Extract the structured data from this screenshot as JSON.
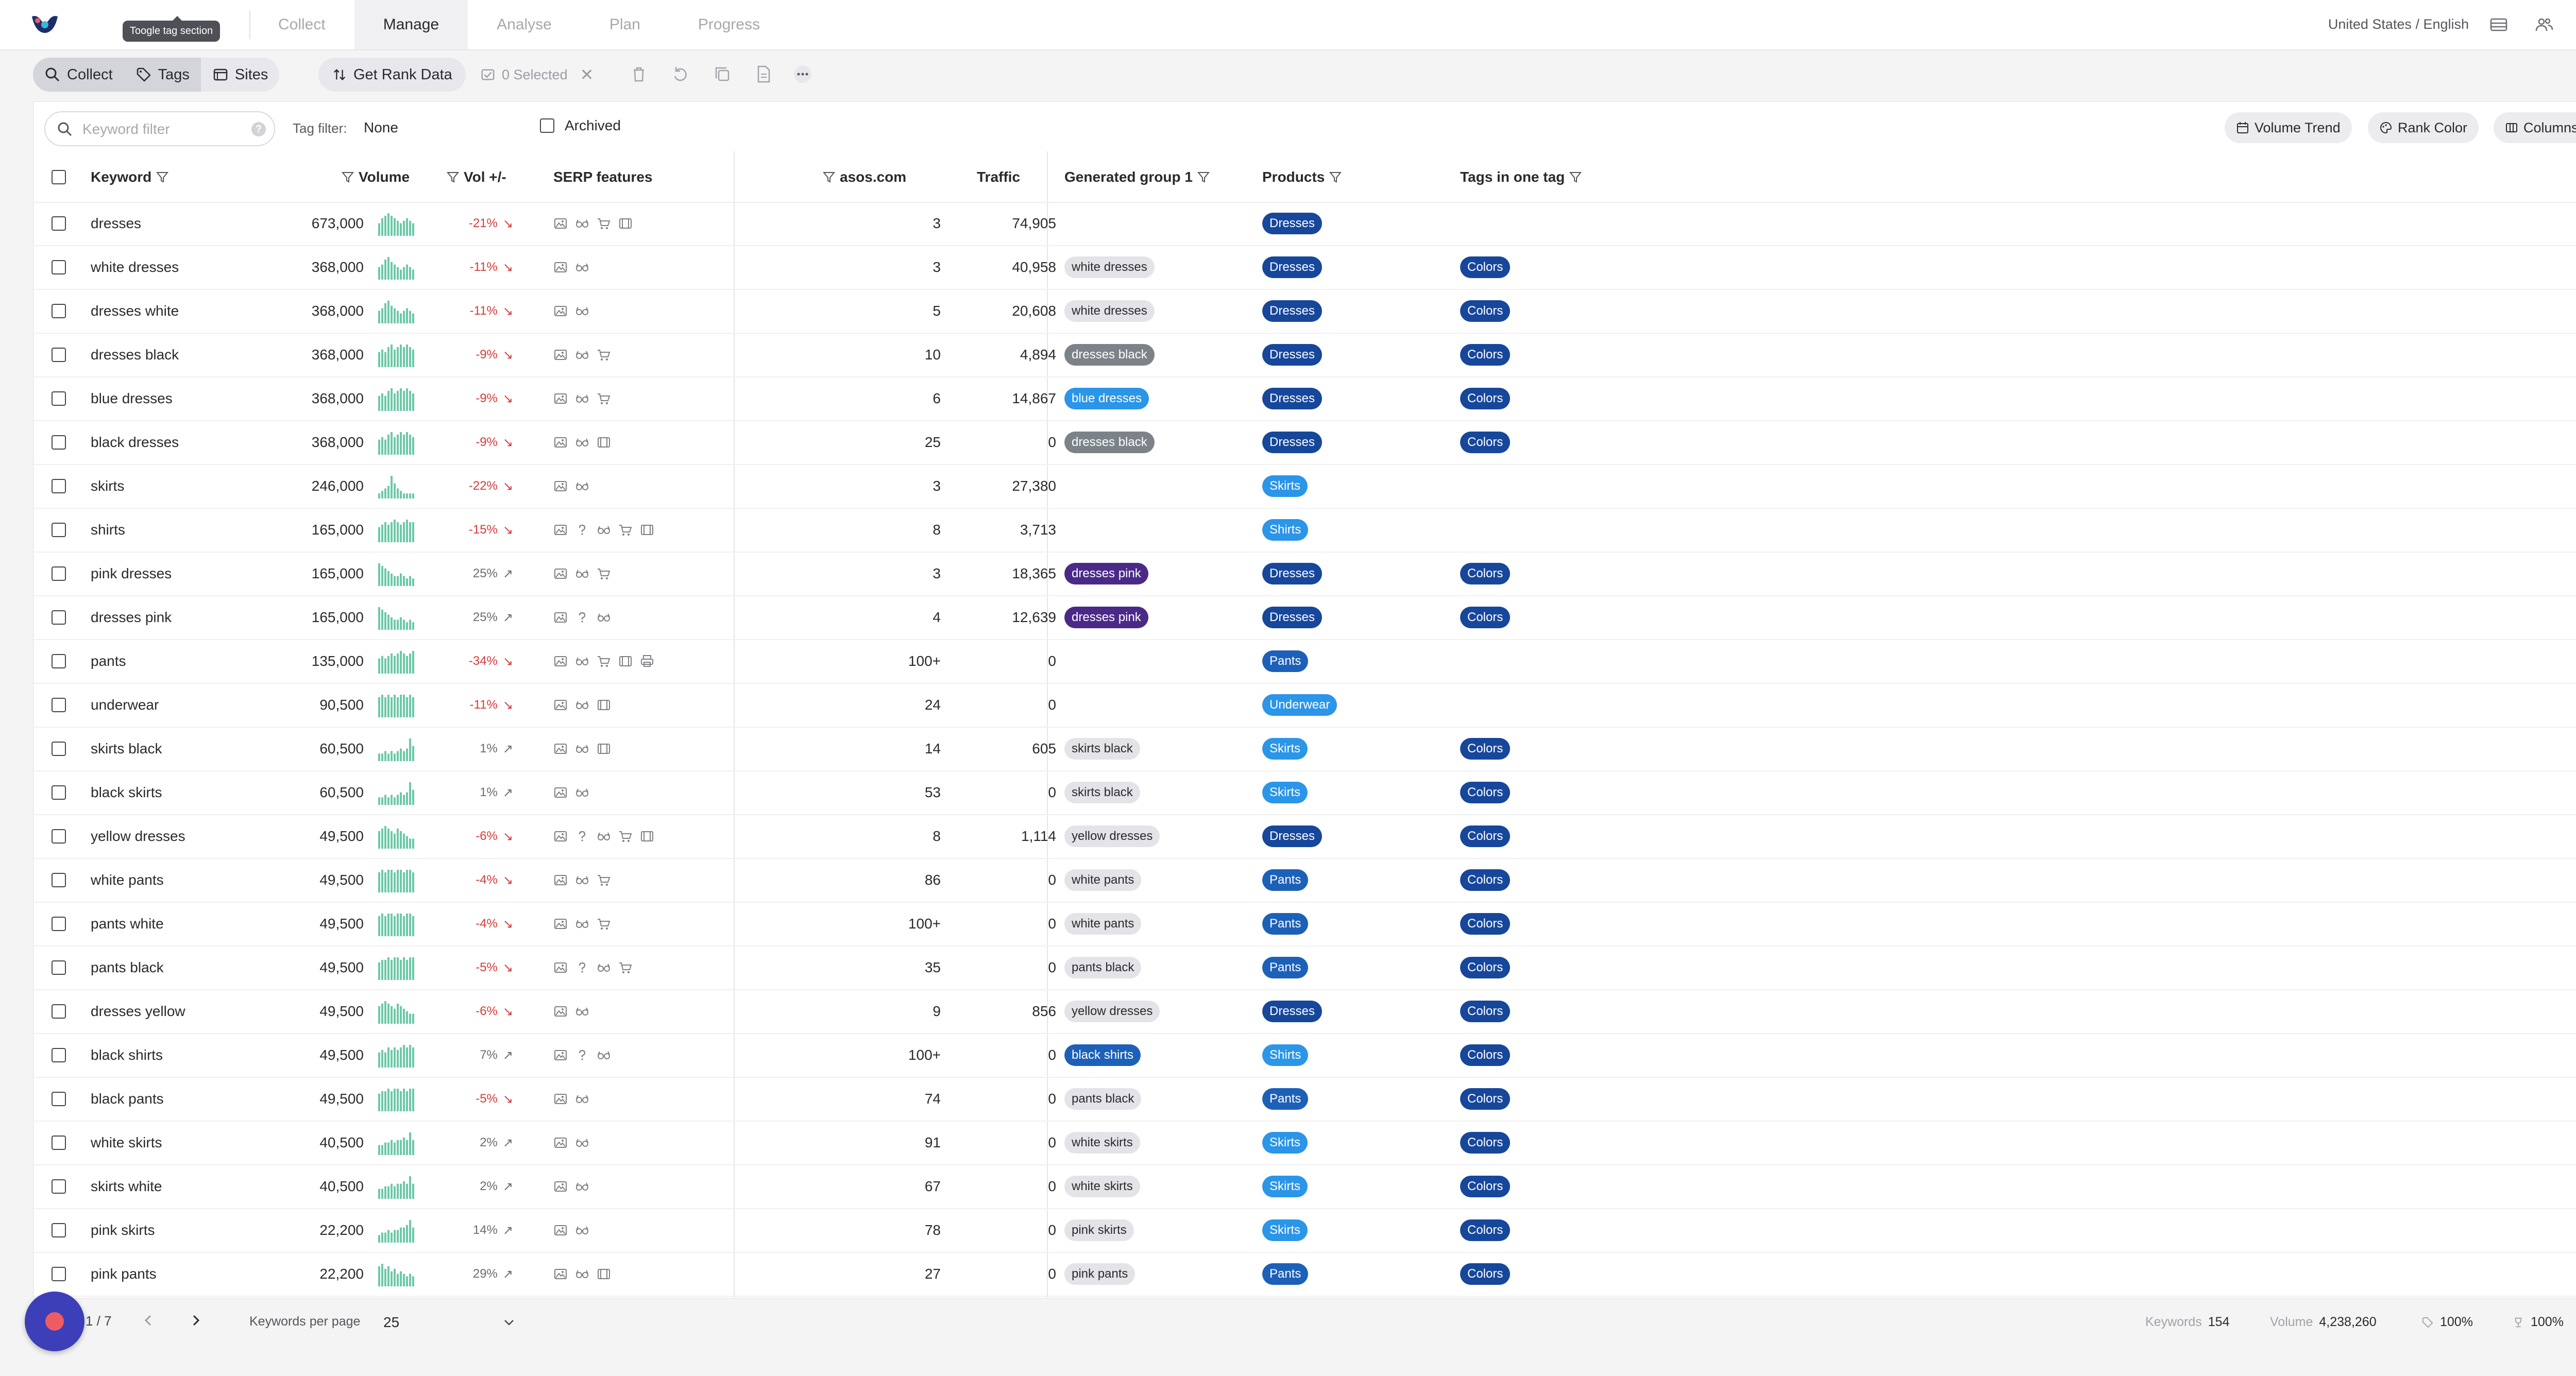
{
  "nav": {
    "tabs": [
      "Collect",
      "Manage",
      "Analyse",
      "Plan",
      "Progress"
    ],
    "active_tab": "Manage",
    "locale": "United States / English",
    "tooltip": "Toogle tag section"
  },
  "toolbar": {
    "collect_label": "Collect",
    "tags_label": "Tags",
    "sites_label": "Sites",
    "rank_label": "Get Rank Data",
    "selected_label": "0 Selected"
  },
  "filters": {
    "search_placeholder": "Keyword filter",
    "tag_filter_label": "Tag filter:",
    "tag_filter_value": "None",
    "archived_label": "Archived",
    "volume_trend_label": "Volume Trend",
    "rank_color_label": "Rank Color",
    "columns_label": "Columns"
  },
  "table": {
    "headers": {
      "keyword": "Keyword",
      "volume": "Volume",
      "vol_change": "Vol +/-",
      "serp": "SERP features",
      "site": "asos.com",
      "traffic": "Traffic",
      "group": "Generated group 1",
      "products": "Products",
      "tags": "Tags in one tag"
    },
    "rows": [
      {
        "keyword": "dresses",
        "volume": "673,000",
        "change": "-21%",
        "dir": "down",
        "spark": [
          5,
          7,
          8,
          9,
          8,
          7,
          6,
          5,
          6,
          7,
          6,
          5
        ],
        "serp": [
          "image",
          "glasses",
          "cart",
          "film"
        ],
        "rank": "3",
        "traffic": "74,905",
        "group": "",
        "product": "Dresses",
        "tag": ""
      },
      {
        "keyword": "white dresses",
        "volume": "368,000",
        "change": "-11%",
        "dir": "down",
        "spark": [
          5,
          6,
          8,
          9,
          7,
          6,
          5,
          4,
          5,
          6,
          5,
          4
        ],
        "serp": [
          "image",
          "glasses"
        ],
        "rank": "3",
        "traffic": "40,958",
        "group": "white dresses",
        "product": "Dresses",
        "tag": "Colors"
      },
      {
        "keyword": "dresses white",
        "volume": "368,000",
        "change": "-11%",
        "dir": "down",
        "spark": [
          5,
          6,
          8,
          9,
          7,
          6,
          5,
          4,
          5,
          6,
          5,
          4
        ],
        "serp": [
          "image",
          "glasses"
        ],
        "rank": "5",
        "traffic": "20,608",
        "group": "white dresses",
        "product": "Dresses",
        "tag": "Colors"
      },
      {
        "keyword": "dresses black",
        "volume": "368,000",
        "change": "-9%",
        "dir": "down",
        "spark": [
          6,
          7,
          6,
          8,
          9,
          7,
          8,
          9,
          8,
          9,
          8,
          7
        ],
        "serp": [
          "image",
          "glasses",
          "cart"
        ],
        "rank": "10",
        "traffic": "4,894",
        "group": "dresses black",
        "product": "Dresses",
        "tag": "Colors"
      },
      {
        "keyword": "blue dresses",
        "volume": "368,000",
        "change": "-9%",
        "dir": "down",
        "spark": [
          6,
          7,
          6,
          8,
          9,
          7,
          8,
          9,
          8,
          9,
          8,
          7
        ],
        "serp": [
          "image",
          "glasses",
          "cart"
        ],
        "rank": "6",
        "traffic": "14,867",
        "group": "blue dresses",
        "product": "Dresses",
        "tag": "Colors"
      },
      {
        "keyword": "black dresses",
        "volume": "368,000",
        "change": "-9%",
        "dir": "down",
        "spark": [
          6,
          7,
          6,
          8,
          9,
          7,
          8,
          9,
          8,
          9,
          8,
          7
        ],
        "serp": [
          "image",
          "glasses",
          "film"
        ],
        "rank": "25",
        "traffic": "0",
        "group": "dresses black",
        "product": "Dresses",
        "tag": "Colors"
      },
      {
        "keyword": "skirts",
        "volume": "246,000",
        "change": "-22%",
        "dir": "down",
        "spark": [
          2,
          3,
          4,
          5,
          9,
          6,
          4,
          3,
          2,
          2,
          2,
          2
        ],
        "serp": [
          "image",
          "glasses"
        ],
        "rank": "3",
        "traffic": "27,380",
        "group": "",
        "product": "Skirts",
        "tag": ""
      },
      {
        "keyword": "shirts",
        "volume": "165,000",
        "change": "-15%",
        "dir": "down",
        "spark": [
          6,
          7,
          8,
          7,
          8,
          9,
          8,
          7,
          8,
          9,
          8,
          8
        ],
        "serp": [
          "image",
          "question",
          "glasses",
          "cart",
          "film"
        ],
        "rank": "8",
        "traffic": "3,713",
        "group": "",
        "product": "Shirts",
        "tag": ""
      },
      {
        "keyword": "pink dresses",
        "volume": "165,000",
        "change": "25%",
        "dir": "up",
        "spark": [
          9,
          8,
          7,
          6,
          5,
          4,
          4,
          5,
          4,
          3,
          4,
          3
        ],
        "serp": [
          "image",
          "glasses",
          "cart"
        ],
        "rank": "3",
        "traffic": "18,365",
        "group": "dresses pink",
        "product": "Dresses",
        "tag": "Colors"
      },
      {
        "keyword": "dresses pink",
        "volume": "165,000",
        "change": "25%",
        "dir": "up",
        "spark": [
          9,
          8,
          7,
          6,
          5,
          4,
          4,
          5,
          4,
          3,
          4,
          3
        ],
        "serp": [
          "image",
          "question",
          "glasses"
        ],
        "rank": "4",
        "traffic": "12,639",
        "group": "dresses pink",
        "product": "Dresses",
        "tag": "Colors"
      },
      {
        "keyword": "pants",
        "volume": "135,000",
        "change": "-34%",
        "dir": "down",
        "spark": [
          6,
          7,
          6,
          7,
          8,
          7,
          8,
          9,
          8,
          7,
          8,
          9
        ],
        "serp": [
          "image",
          "glasses",
          "cart",
          "film",
          "print"
        ],
        "rank": "100+",
        "traffic": "0",
        "group": "",
        "product": "Pants",
        "tag": ""
      },
      {
        "keyword": "underwear",
        "volume": "90,500",
        "change": "-11%",
        "dir": "down",
        "spark": [
          8,
          9,
          8,
          9,
          8,
          9,
          8,
          9,
          9,
          8,
          9,
          8
        ],
        "serp": [
          "image",
          "glasses",
          "film"
        ],
        "rank": "24",
        "traffic": "0",
        "group": "",
        "product": "Underwear",
        "tag": ""
      },
      {
        "keyword": "skirts black",
        "volume": "60,500",
        "change": "1%",
        "dir": "up",
        "spark": [
          3,
          3,
          4,
          3,
          4,
          3,
          4,
          5,
          4,
          5,
          9,
          6
        ],
        "serp": [
          "image",
          "glasses",
          "film"
        ],
        "rank": "14",
        "traffic": "605",
        "group": "skirts black",
        "product": "Skirts",
        "tag": "Colors"
      },
      {
        "keyword": "black skirts",
        "volume": "60,500",
        "change": "1%",
        "dir": "up",
        "spark": [
          3,
          3,
          4,
          3,
          4,
          3,
          4,
          5,
          4,
          5,
          9,
          6
        ],
        "serp": [
          "image",
          "glasses"
        ],
        "rank": "53",
        "traffic": "0",
        "group": "skirts black",
        "product": "Skirts",
        "tag": "Colors"
      },
      {
        "keyword": "yellow dresses",
        "volume": "49,500",
        "change": "-6%",
        "dir": "down",
        "spark": [
          7,
          8,
          9,
          8,
          7,
          6,
          8,
          7,
          6,
          5,
          4,
          4
        ],
        "serp": [
          "image",
          "question",
          "glasses",
          "cart",
          "film"
        ],
        "rank": "8",
        "traffic": "1,114",
        "group": "yellow dresses",
        "product": "Dresses",
        "tag": "Colors"
      },
      {
        "keyword": "white pants",
        "volume": "49,500",
        "change": "-4%",
        "dir": "down",
        "spark": [
          8,
          9,
          8,
          9,
          9,
          8,
          9,
          9,
          8,
          9,
          9,
          8
        ],
        "serp": [
          "image",
          "glasses",
          "cart"
        ],
        "rank": "86",
        "traffic": "0",
        "group": "white pants",
        "product": "Pants",
        "tag": "Colors"
      },
      {
        "keyword": "pants white",
        "volume": "49,500",
        "change": "-4%",
        "dir": "down",
        "spark": [
          8,
          9,
          8,
          9,
          9,
          8,
          9,
          9,
          8,
          9,
          9,
          8
        ],
        "serp": [
          "image",
          "glasses",
          "cart"
        ],
        "rank": "100+",
        "traffic": "0",
        "group": "white pants",
        "product": "Pants",
        "tag": "Colors"
      },
      {
        "keyword": "pants black",
        "volume": "49,500",
        "change": "-5%",
        "dir": "down",
        "spark": [
          7,
          8,
          8,
          9,
          8,
          9,
          9,
          8,
          9,
          8,
          9,
          9
        ],
        "serp": [
          "image",
          "question",
          "glasses",
          "cart"
        ],
        "rank": "35",
        "traffic": "0",
        "group": "pants black",
        "product": "Pants",
        "tag": "Colors"
      },
      {
        "keyword": "dresses yellow",
        "volume": "49,500",
        "change": "-6%",
        "dir": "down",
        "spark": [
          7,
          8,
          9,
          8,
          7,
          6,
          8,
          7,
          6,
          5,
          4,
          4
        ],
        "serp": [
          "image",
          "glasses"
        ],
        "rank": "9",
        "traffic": "856",
        "group": "yellow dresses",
        "product": "Dresses",
        "tag": "Colors"
      },
      {
        "keyword": "black shirts",
        "volume": "49,500",
        "change": "7%",
        "dir": "up",
        "spark": [
          6,
          7,
          6,
          8,
          7,
          8,
          7,
          8,
          9,
          8,
          9,
          8
        ],
        "serp": [
          "image",
          "question",
          "glasses"
        ],
        "rank": "100+",
        "traffic": "0",
        "group": "black shirts",
        "product": "Shirts",
        "tag": "Colors"
      },
      {
        "keyword": "black pants",
        "volume": "49,500",
        "change": "-5%",
        "dir": "down",
        "spark": [
          7,
          8,
          8,
          9,
          8,
          9,
          9,
          8,
          9,
          8,
          9,
          9
        ],
        "serp": [
          "image",
          "glasses"
        ],
        "rank": "74",
        "traffic": "0",
        "group": "pants black",
        "product": "Pants",
        "tag": "Colors"
      },
      {
        "keyword": "white skirts",
        "volume": "40,500",
        "change": "2%",
        "dir": "up",
        "spark": [
          4,
          4,
          5,
          5,
          6,
          5,
          6,
          6,
          7,
          6,
          9,
          6
        ],
        "serp": [
          "image",
          "glasses"
        ],
        "rank": "91",
        "traffic": "0",
        "group": "white skirts",
        "product": "Skirts",
        "tag": "Colors"
      },
      {
        "keyword": "skirts white",
        "volume": "40,500",
        "change": "2%",
        "dir": "up",
        "spark": [
          4,
          4,
          5,
          5,
          6,
          5,
          6,
          6,
          7,
          6,
          9,
          6
        ],
        "serp": [
          "image",
          "glasses"
        ],
        "rank": "67",
        "traffic": "0",
        "group": "white skirts",
        "product": "Skirts",
        "tag": "Colors"
      },
      {
        "keyword": "pink skirts",
        "volume": "22,200",
        "change": "14%",
        "dir": "up",
        "spark": [
          3,
          4,
          4,
          5,
          4,
          5,
          5,
          6,
          6,
          7,
          9,
          6
        ],
        "serp": [
          "image",
          "glasses"
        ],
        "rank": "78",
        "traffic": "0",
        "group": "pink skirts",
        "product": "Skirts",
        "tag": "Colors"
      },
      {
        "keyword": "pink pants",
        "volume": "22,200",
        "change": "29%",
        "dir": "up",
        "spark": [
          8,
          9,
          7,
          8,
          6,
          7,
          5,
          6,
          5,
          4,
          5,
          4
        ],
        "serp": [
          "image",
          "glasses",
          "film"
        ],
        "rank": "27",
        "traffic": "0",
        "group": "pink pants",
        "product": "Pants",
        "tag": "Colors"
      }
    ]
  },
  "tag_colors": {
    "white dresses": {
      "bg": "#e4e4e8",
      "fg": "#2a2a2e"
    },
    "dresses black": {
      "bg": "#7c8388",
      "fg": "#ffffff"
    },
    "blue dresses": {
      "bg": "#2b95e8",
      "fg": "#ffffff"
    },
    "dresses pink": {
      "bg": "#4a2a86",
      "fg": "#ffffff"
    },
    "skirts black": {
      "bg": "#e4e4e8",
      "fg": "#2a2a2e"
    },
    "yellow dresses": {
      "bg": "#e4e4e8",
      "fg": "#2a2a2e"
    },
    "white pants": {
      "bg": "#e4e4e8",
      "fg": "#2a2a2e"
    },
    "pants black": {
      "bg": "#e4e4e8",
      "fg": "#2a2a2e"
    },
    "black shirts": {
      "bg": "#1d60b8",
      "fg": "#ffffff"
    },
    "white skirts": {
      "bg": "#e4e4e8",
      "fg": "#2a2a2e"
    },
    "pink skirts": {
      "bg": "#e4e4e8",
      "fg": "#2a2a2e"
    },
    "pink pants": {
      "bg": "#e4e4e8",
      "fg": "#2a2a2e"
    },
    "Dresses": {
      "bg": "#17479b",
      "fg": "#ffffff"
    },
    "Skirts": {
      "bg": "#2b95e8",
      "fg": "#ffffff"
    },
    "Shirts": {
      "bg": "#2b95e8",
      "fg": "#ffffff"
    },
    "Pants": {
      "bg": "#1d60b8",
      "fg": "#ffffff"
    },
    "Underwear": {
      "bg": "#2b95e8",
      "fg": "#ffffff"
    },
    "Colors": {
      "bg": "#17479b",
      "fg": "#ffffff"
    }
  },
  "colors": {
    "sparkline": "#6cc9a8",
    "negative": "#d63b3b"
  },
  "footer": {
    "page": "1 / 7",
    "per_page_label": "Keywords per page",
    "per_page_value": "25",
    "keywords_label": "Keywords",
    "keywords_value": "154",
    "volume_label": "Volume",
    "volume_value": "4,238,260",
    "pct1": "100%",
    "pct2": "100%"
  }
}
